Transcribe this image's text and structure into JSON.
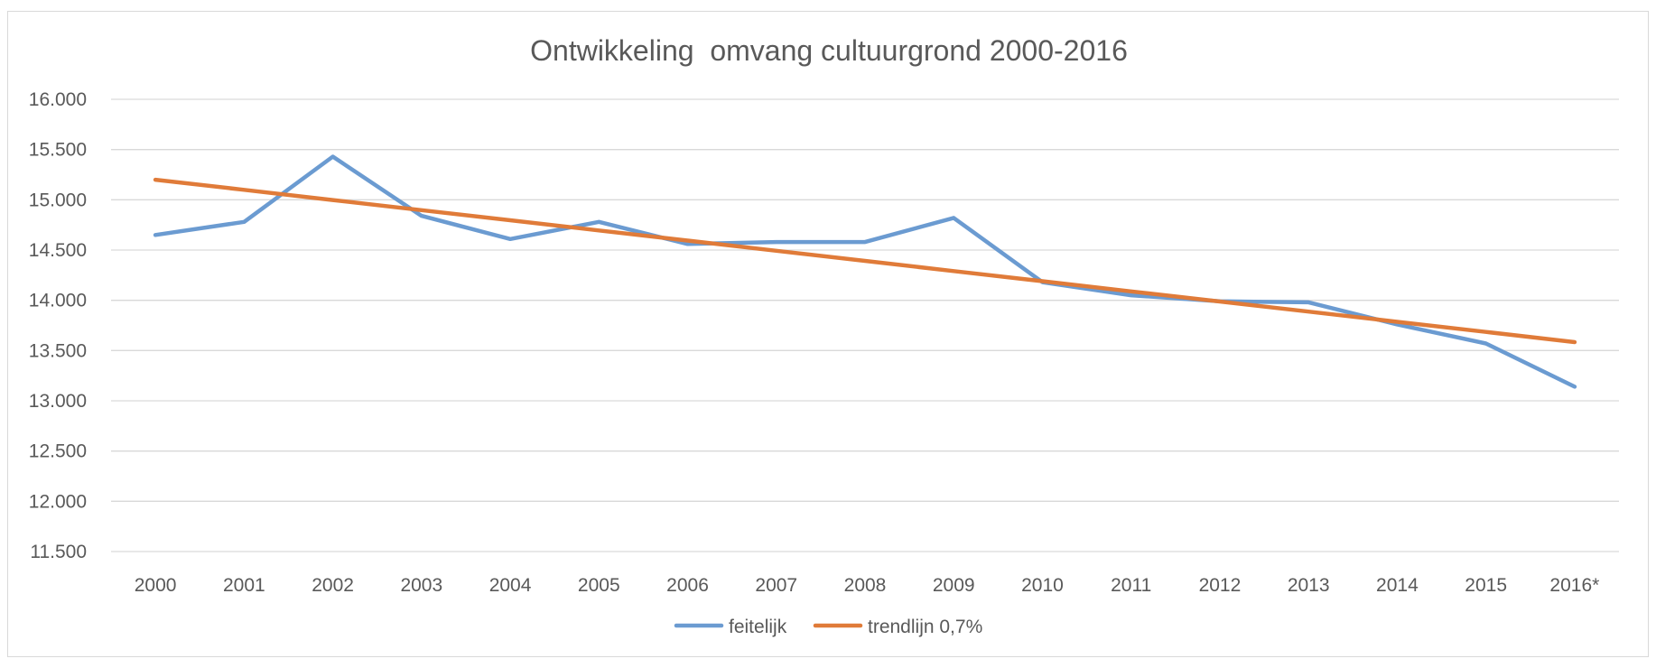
{
  "chart_data": {
    "type": "line",
    "title": "Ontwikkeling  omvang cultuurgrond 2000-2016",
    "categories": [
      "2000",
      "2001",
      "2002",
      "2003",
      "2004",
      "2005",
      "2006",
      "2007",
      "2008",
      "2009",
      "2010",
      "2011",
      "2012",
      "2013",
      "2014",
      "2015",
      "2016*"
    ],
    "y_tick_labels": [
      "11.500",
      "12.000",
      "12.500",
      "13.000",
      "13.500",
      "14.000",
      "14.500",
      "15.000",
      "15.500",
      "16.000"
    ],
    "ylim": [
      11500,
      16000
    ],
    "y_tick_step": 500,
    "grid": true,
    "legend_position": "bottom",
    "series": [
      {
        "name": "feitelijk",
        "color": "#6b9bd1",
        "values": [
          14650,
          14780,
          15430,
          14840,
          14610,
          14780,
          14560,
          14580,
          14580,
          14820,
          14180,
          14050,
          13990,
          13980,
          13760,
          13570,
          13140
        ]
      },
      {
        "name": "trendlijn 0,7%",
        "color": "#e07b39",
        "values": [
          15200,
          15099,
          14998,
          14897,
          14796,
          14695,
          14594,
          14493,
          14392,
          14291,
          14190,
          14089,
          13988,
          13887,
          13786,
          13685,
          13584
        ]
      }
    ]
  }
}
